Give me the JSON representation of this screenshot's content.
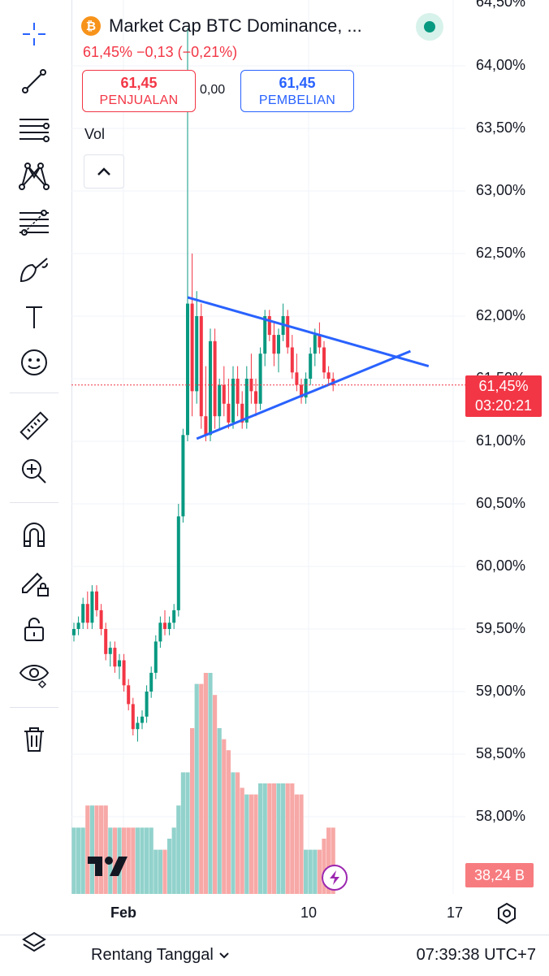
{
  "header": {
    "coin_symbol": "₿",
    "title": "Market Cap BTC Dominance, ...",
    "change_text": "61,45%  −0,13  (−0,21%)",
    "sell_value": "61,45",
    "sell_label": "PENJUALAN",
    "spread": "0,00",
    "buy_value": "61,45",
    "buy_label": "PEMBELIAN",
    "volume_label": "Vol"
  },
  "toolbar": {
    "icons": [
      "crosshair-icon",
      "trend-line-icon",
      "horizontal-lines-icon",
      "pattern-icon",
      "fib-icon",
      "brush-icon",
      "text-icon",
      "emoji-icon",
      "ruler-icon",
      "zoom-icon",
      "magnet-icon",
      "lock-drawing-icon",
      "unlock-icon",
      "eye-icon",
      "trash-icon"
    ]
  },
  "price_axis": {
    "top_partial": "64,50%",
    "labels": [
      "64,00%",
      "63,50%",
      "63,00%",
      "62,50%",
      "62,00%",
      "61,50%",
      "61,00%",
      "60,50%",
      "60,00%",
      "59,50%",
      "59,00%",
      "58,50%",
      "58,00%"
    ],
    "current_price": "61,45%",
    "countdown": "03:20:21",
    "volume_value": "38,24 B"
  },
  "time_axis": {
    "labels": [
      "Feb",
      "10",
      "17"
    ]
  },
  "bottom_bar": {
    "range_label": "Rentang Tanggal",
    "clock": "07:39:38 UTC+7"
  },
  "colors": {
    "up": "#089981",
    "down": "#f23645",
    "trendline": "#2962ff",
    "accent": "#2962ff"
  },
  "chart_data": {
    "type": "candlestick",
    "ylim": [
      57.9,
      64.5
    ],
    "current_price": 61.45,
    "candles": [
      [
        59.45,
        59.55,
        59.4,
        59.5
      ],
      [
        59.5,
        59.6,
        59.45,
        59.55
      ],
      [
        59.55,
        59.75,
        59.5,
        59.7
      ],
      [
        59.7,
        59.8,
        59.5,
        59.55
      ],
      [
        59.55,
        59.85,
        59.5,
        59.8
      ],
      [
        59.8,
        59.85,
        59.6,
        59.65
      ],
      [
        59.65,
        59.7,
        59.45,
        59.5
      ],
      [
        59.5,
        59.55,
        59.25,
        59.3
      ],
      [
        59.3,
        59.4,
        59.2,
        59.35
      ],
      [
        59.35,
        59.4,
        59.15,
        59.2
      ],
      [
        59.2,
        59.3,
        59.1,
        59.25
      ],
      [
        59.25,
        59.3,
        59.0,
        59.05
      ],
      [
        59.05,
        59.1,
        58.85,
        58.9
      ],
      [
        58.9,
        58.95,
        58.65,
        58.7
      ],
      [
        58.7,
        58.8,
        58.6,
        58.75
      ],
      [
        58.75,
        58.85,
        58.7,
        58.8
      ],
      [
        58.8,
        59.05,
        58.75,
        59.0
      ],
      [
        59.0,
        59.2,
        58.95,
        59.15
      ],
      [
        59.15,
        59.45,
        59.1,
        59.4
      ],
      [
        59.4,
        59.6,
        59.35,
        59.55
      ],
      [
        59.55,
        59.65,
        59.45,
        59.5
      ],
      [
        59.5,
        59.6,
        59.45,
        59.55
      ],
      [
        59.55,
        59.7,
        59.5,
        59.65
      ],
      [
        59.65,
        60.5,
        59.6,
        60.4
      ],
      [
        60.4,
        61.1,
        60.35,
        61.05
      ],
      [
        61.05,
        64.3,
        61.0,
        62.1
      ],
      [
        62.1,
        62.5,
        61.2,
        61.4
      ],
      [
        61.4,
        62.2,
        61.3,
        62.0
      ],
      [
        62.0,
        62.1,
        61.1,
        61.2
      ],
      [
        61.2,
        61.6,
        61.0,
        61.05
      ],
      [
        61.05,
        61.9,
        61.0,
        61.8
      ],
      [
        61.8,
        61.9,
        61.1,
        61.2
      ],
      [
        61.2,
        61.5,
        61.1,
        61.45
      ],
      [
        61.45,
        61.6,
        61.2,
        61.3
      ],
      [
        61.3,
        61.5,
        61.1,
        61.15
      ],
      [
        61.15,
        61.6,
        61.1,
        61.5
      ],
      [
        61.5,
        61.6,
        61.2,
        61.3
      ],
      [
        61.3,
        61.4,
        61.1,
        61.15
      ],
      [
        61.15,
        61.6,
        61.1,
        61.5
      ],
      [
        61.5,
        61.7,
        61.3,
        61.4
      ],
      [
        61.4,
        61.5,
        61.2,
        61.3
      ],
      [
        61.3,
        61.75,
        61.25,
        61.7
      ],
      [
        61.7,
        62.05,
        61.6,
        62.0
      ],
      [
        62.0,
        62.05,
        61.8,
        61.85
      ],
      [
        61.85,
        61.95,
        61.6,
        61.7
      ],
      [
        61.7,
        61.9,
        61.55,
        61.85
      ],
      [
        61.85,
        62.1,
        61.8,
        62.0
      ],
      [
        62.0,
        62.05,
        61.7,
        61.75
      ],
      [
        61.75,
        61.85,
        61.5,
        61.55
      ],
      [
        61.55,
        61.7,
        61.4,
        61.45
      ],
      [
        61.45,
        61.5,
        61.3,
        61.35
      ],
      [
        61.35,
        61.55,
        61.3,
        61.5
      ],
      [
        61.5,
        61.75,
        61.45,
        61.7
      ],
      [
        61.7,
        61.9,
        61.6,
        61.85
      ],
      [
        61.85,
        61.95,
        61.7,
        61.75
      ],
      [
        61.75,
        61.8,
        61.5,
        61.55
      ],
      [
        61.55,
        61.6,
        61.45,
        61.5
      ],
      [
        61.5,
        61.55,
        61.4,
        61.45
      ]
    ],
    "volumes": [
      0.3,
      0.3,
      0.3,
      0.4,
      0.4,
      0.4,
      0.4,
      0.4,
      0.3,
      0.3,
      0.3,
      0.3,
      0.3,
      0.3,
      0.3,
      0.3,
      0.3,
      0.3,
      0.2,
      0.2,
      0.2,
      0.25,
      0.3,
      0.4,
      0.55,
      0.55,
      0.75,
      0.95,
      0.95,
      1.0,
      1.0,
      0.9,
      0.75,
      0.7,
      0.65,
      0.55,
      0.55,
      0.48,
      0.45,
      0.45,
      0.45,
      0.5,
      0.5,
      0.5,
      0.5,
      0.5,
      0.5,
      0.5,
      0.5,
      0.45,
      0.45,
      0.2,
      0.2,
      0.2,
      0.2,
      0.25,
      0.3,
      0.3
    ],
    "trendlines": [
      {
        "from": [
          25,
          62.15
        ],
        "to": [
          78,
          61.6
        ]
      },
      {
        "from": [
          27,
          61.02
        ],
        "to": [
          74,
          61.72
        ]
      }
    ]
  }
}
